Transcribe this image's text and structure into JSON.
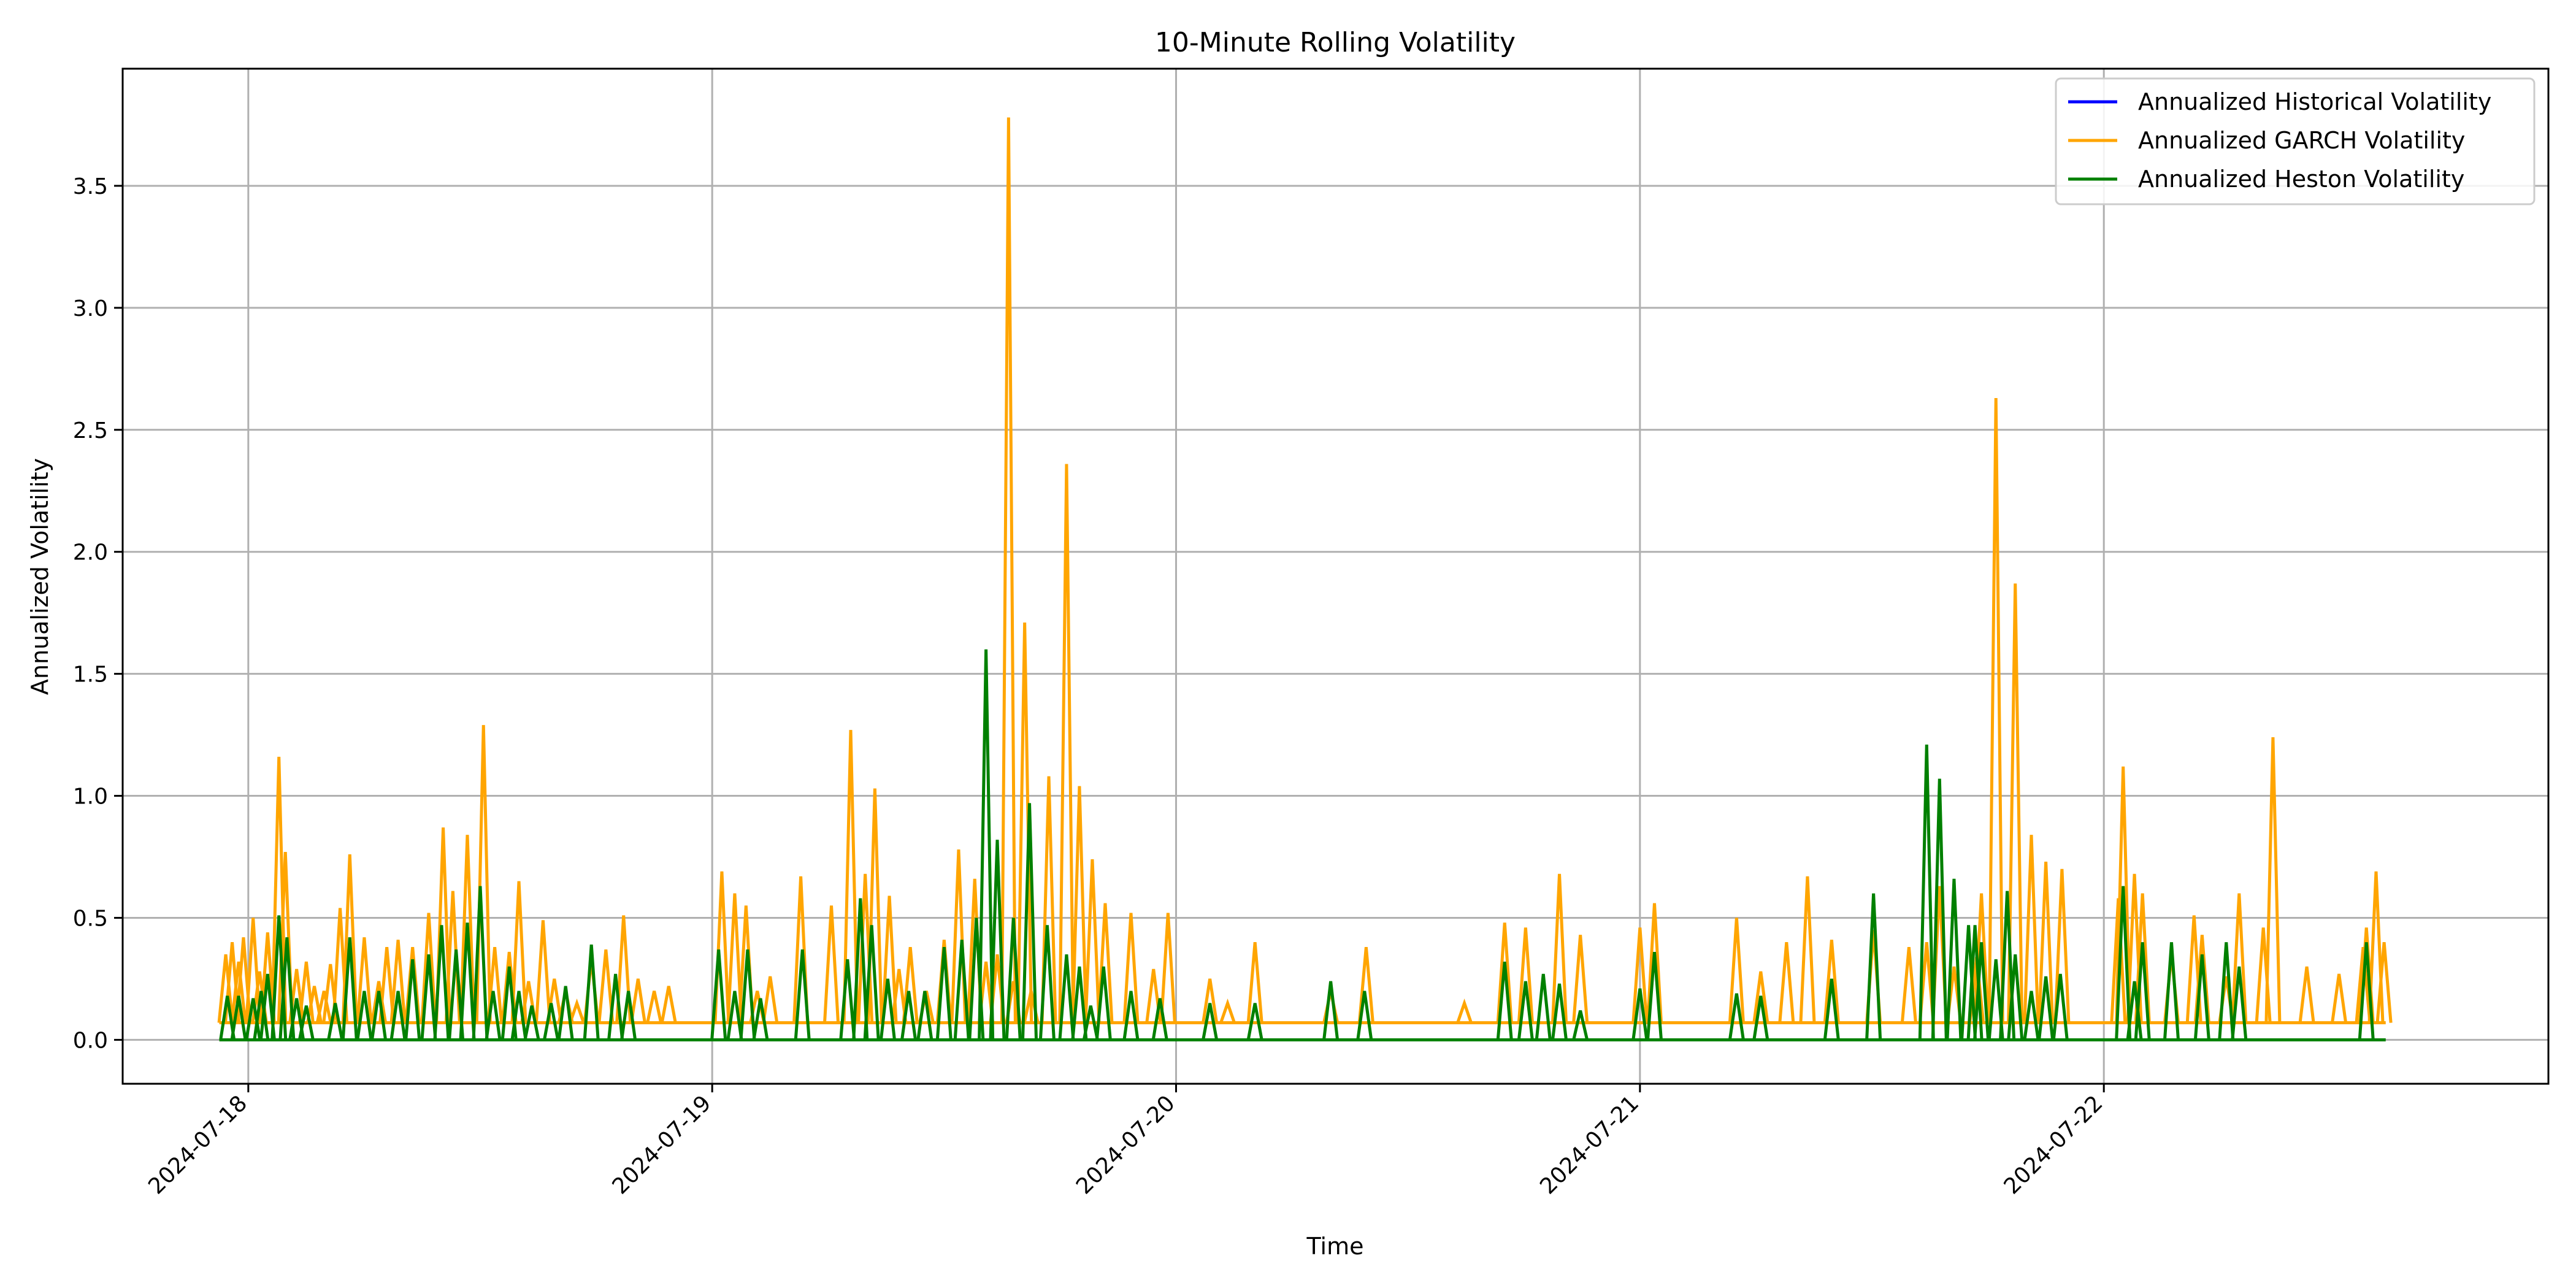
{
  "chart_data": {
    "type": "line",
    "title": "10-Minute Rolling Volatility",
    "xlabel": "Time",
    "ylabel": "Annualized Volatility",
    "x_axis_type": "date",
    "xlim": [
      "2017-07-17T17:30",
      "2024-07-22T23:00"
    ],
    "ylim": [
      -0.18,
      3.98
    ],
    "x_ticks": [
      "2024-07-18",
      "2024-07-19",
      "2024-07-20",
      "2024-07-21",
      "2024-07-22"
    ],
    "y_ticks": [
      0.0,
      0.5,
      1.0,
      1.5,
      2.0,
      2.5,
      3.0,
      3.5
    ],
    "y_tick_labels": [
      "0.0",
      "0.5",
      "1.0",
      "1.5",
      "2.0",
      "2.5",
      "3.0",
      "3.5"
    ],
    "grid": true,
    "legend_position": "top-right",
    "series": [
      {
        "name": "Annualized Historical Volatility",
        "color": "#0000ff",
        "x": [],
        "y": []
      },
      {
        "name": "Annualized GARCH Volatility",
        "color": "#ffa500",
        "baseline": 0.07,
        "x": [
          "2024-07-17T22:50",
          "2024-07-17T23:10",
          "2024-07-17T23:30",
          "2024-07-17T23:45",
          "2024-07-18T00:15",
          "2024-07-18T00:35",
          "2024-07-18T01:00",
          "2024-07-18T01:35",
          "2024-07-18T01:55",
          "2024-07-18T02:30",
          "2024-07-18T03:00",
          "2024-07-18T03:25",
          "2024-07-18T03:55",
          "2024-07-18T04:15",
          "2024-07-18T04:45",
          "2024-07-18T05:15",
          "2024-07-18T06:00",
          "2024-07-18T06:45",
          "2024-07-18T07:10",
          "2024-07-18T07:45",
          "2024-07-18T08:30",
          "2024-07-18T09:20",
          "2024-07-18T10:05",
          "2024-07-18T10:35",
          "2024-07-18T11:20",
          "2024-07-18T12:10",
          "2024-07-18T12:45",
          "2024-07-18T13:30",
          "2024-07-18T14:00",
          "2024-07-18T14:30",
          "2024-07-18T15:15",
          "2024-07-18T15:50",
          "2024-07-18T16:25",
          "2024-07-18T17:00",
          "2024-07-18T17:45",
          "2024-07-18T18:30",
          "2024-07-18T19:25",
          "2024-07-18T20:10",
          "2024-07-18T21:00",
          "2024-07-18T21:45",
          "2024-07-19T00:30",
          "2024-07-19T01:10",
          "2024-07-19T01:45",
          "2024-07-19T02:20",
          "2024-07-19T03:00",
          "2024-07-19T04:35",
          "2024-07-19T06:10",
          "2024-07-19T07:10",
          "2024-07-19T07:55",
          "2024-07-19T08:25",
          "2024-07-19T09:10",
          "2024-07-19T09:40",
          "2024-07-19T10:15",
          "2024-07-19T11:05",
          "2024-07-19T12:00",
          "2024-07-19T12:45",
          "2024-07-19T13:35",
          "2024-07-19T14:10",
          "2024-07-19T14:45",
          "2024-07-19T15:20",
          "2024-07-19T15:35",
          "2024-07-19T16:10",
          "2024-07-19T16:30",
          "2024-07-19T17:25",
          "2024-07-19T18:20",
          "2024-07-19T19:00",
          "2024-07-19T19:40",
          "2024-07-19T20:20",
          "2024-07-19T21:40",
          "2024-07-19T22:50",
          "2024-07-19T23:35",
          "2024-07-20T01:45",
          "2024-07-20T02:40",
          "2024-07-20T04:05",
          "2024-07-20T08:00",
          "2024-07-20T09:50",
          "2024-07-20T14:55",
          "2024-07-20T17:00",
          "2024-07-20T18:05",
          "2024-07-20T19:50",
          "2024-07-20T20:55",
          "2024-07-21T00:00",
          "2024-07-21T00:45",
          "2024-07-21T05:00",
          "2024-07-21T06:15",
          "2024-07-21T07:35",
          "2024-07-21T08:40",
          "2024-07-21T09:55",
          "2024-07-21T12:05",
          "2024-07-21T13:55",
          "2024-07-21T14:50",
          "2024-07-21T15:30",
          "2024-07-21T16:15",
          "2024-07-21T17:25",
          "2024-07-21T17:40",
          "2024-07-21T18:25",
          "2024-07-21T19:25",
          "2024-07-21T20:15",
          "2024-07-21T21:00",
          "2024-07-21T21:50",
          "2024-07-22T00:45",
          "2024-07-22T01:00",
          "2024-07-22T01:35",
          "2024-07-22T02:00",
          "2024-07-22T03:30",
          "2024-07-22T04:40",
          "2024-07-22T05:05",
          "2024-07-22T06:20",
          "2024-07-22T07:00",
          "2024-07-22T08:15",
          "2024-07-22T08:45",
          "2024-07-22T10:30",
          "2024-07-22T12:10",
          "2024-07-22T13:25",
          "2024-07-22T13:35",
          "2024-07-22T14:05",
          "2024-07-22T14:30"
        ],
        "y": [
          0.35,
          0.4,
          0.32,
          0.42,
          0.5,
          0.28,
          0.44,
          1.16,
          0.77,
          0.29,
          0.32,
          0.22,
          0.2,
          0.31,
          0.54,
          0.76,
          0.42,
          0.24,
          0.38,
          0.41,
          0.38,
          0.52,
          0.87,
          0.61,
          0.84,
          1.29,
          0.38,
          0.36,
          0.65,
          0.24,
          0.49,
          0.25,
          0.2,
          0.15,
          0.33,
          0.37,
          0.51,
          0.25,
          0.2,
          0.22,
          0.69,
          0.6,
          0.55,
          0.2,
          0.26,
          0.67,
          0.55,
          1.27,
          0.68,
          1.03,
          0.59,
          0.29,
          0.38,
          0.2,
          0.41,
          0.78,
          0.66,
          0.32,
          0.35,
          3.78,
          0.24,
          1.71,
          0.2,
          1.08,
          2.36,
          1.04,
          0.74,
          0.56,
          0.52,
          0.29,
          0.52,
          0.25,
          0.15,
          0.4,
          0.2,
          0.38,
          0.15,
          0.48,
          0.46,
          0.68,
          0.43,
          0.46,
          0.56,
          0.5,
          0.28,
          0.4,
          0.67,
          0.41,
          0.45,
          0.38,
          0.4,
          0.63,
          0.3,
          0.34,
          0.6,
          2.63,
          1.87,
          0.84,
          0.73,
          0.7,
          0.58,
          1.12,
          0.68,
          0.6,
          0.35,
          0.51,
          0.43,
          0.26,
          0.6,
          0.46,
          1.24,
          0.3,
          0.27,
          0.38,
          0.46,
          0.69,
          0.4
        ]
      },
      {
        "name": "Annualized Heston Volatility",
        "color": "#008000",
        "baseline": 0.0,
        "x": [
          "2024-07-17T22:55",
          "2024-07-17T23:30",
          "2024-07-18T00:15",
          "2024-07-18T00:40",
          "2024-07-18T01:00",
          "2024-07-18T01:35",
          "2024-07-18T02:00",
          "2024-07-18T02:30",
          "2024-07-18T03:00",
          "2024-07-18T04:30",
          "2024-07-18T05:15",
          "2024-07-18T06:00",
          "2024-07-18T06:45",
          "2024-07-18T07:45",
          "2024-07-18T08:30",
          "2024-07-18T09:20",
          "2024-07-18T10:00",
          "2024-07-18T10:45",
          "2024-07-18T11:20",
          "2024-07-18T12:00",
          "2024-07-18T12:40",
          "2024-07-18T13:30",
          "2024-07-18T14:00",
          "2024-07-18T14:40",
          "2024-07-18T15:40",
          "2024-07-18T16:25",
          "2024-07-18T17:45",
          "2024-07-18T19:00",
          "2024-07-18T19:40",
          "2024-07-19T00:20",
          "2024-07-19T01:10",
          "2024-07-19T01:50",
          "2024-07-19T02:30",
          "2024-07-19T04:40",
          "2024-07-19T07:00",
          "2024-07-19T07:40",
          "2024-07-19T08:15",
          "2024-07-19T09:05",
          "2024-07-19T10:10",
          "2024-07-19T11:00",
          "2024-07-19T12:00",
          "2024-07-19T12:55",
          "2024-07-19T13:40",
          "2024-07-19T14:10",
          "2024-07-19T14:45",
          "2024-07-19T15:35",
          "2024-07-19T16:25",
          "2024-07-19T17:20",
          "2024-07-19T18:20",
          "2024-07-19T19:00",
          "2024-07-19T19:35",
          "2024-07-19T20:15",
          "2024-07-19T21:40",
          "2024-07-19T23:10",
          "2024-07-20T01:45",
          "2024-07-20T04:05",
          "2024-07-20T08:00",
          "2024-07-20T09:45",
          "2024-07-20T17:00",
          "2024-07-20T18:05",
          "2024-07-20T19:00",
          "2024-07-20T19:50",
          "2024-07-20T20:55",
          "2024-07-21T00:00",
          "2024-07-21T00:45",
          "2024-07-21T05:00",
          "2024-07-21T06:15",
          "2024-07-21T09:55",
          "2024-07-21T12:05",
          "2024-07-21T14:50",
          "2024-07-21T15:30",
          "2024-07-21T16:15",
          "2024-07-21T17:00",
          "2024-07-21T17:20",
          "2024-07-21T17:40",
          "2024-07-21T18:25",
          "2024-07-21T19:00",
          "2024-07-21T19:25",
          "2024-07-21T20:15",
          "2024-07-21T21:00",
          "2024-07-21T21:45",
          "2024-07-22T01:00",
          "2024-07-22T01:35",
          "2024-07-22T02:00",
          "2024-07-22T03:30",
          "2024-07-22T05:05",
          "2024-07-22T06:20",
          "2024-07-22T07:00",
          "2024-07-22T13:35"
        ],
        "y": [
          0.18,
          0.18,
          0.17,
          0.2,
          0.27,
          0.51,
          0.42,
          0.17,
          0.14,
          0.15,
          0.42,
          0.2,
          0.2,
          0.2,
          0.33,
          0.35,
          0.47,
          0.37,
          0.48,
          0.63,
          0.2,
          0.3,
          0.2,
          0.14,
          0.15,
          0.22,
          0.39,
          0.27,
          0.2,
          0.37,
          0.2,
          0.37,
          0.17,
          0.37,
          0.33,
          0.58,
          0.47,
          0.25,
          0.2,
          0.2,
          0.38,
          0.41,
          0.5,
          1.6,
          0.82,
          0.5,
          0.97,
          0.47,
          0.35,
          0.3,
          0.14,
          0.3,
          0.2,
          0.17,
          0.15,
          0.15,
          0.24,
          0.2,
          0.32,
          0.24,
          0.27,
          0.23,
          0.12,
          0.21,
          0.36,
          0.19,
          0.18,
          0.25,
          0.6,
          1.21,
          1.07,
          0.66,
          0.47,
          0.47,
          0.4,
          0.33,
          0.61,
          0.35,
          0.2,
          0.26,
          0.27,
          0.63,
          0.24,
          0.4,
          0.4,
          0.35,
          0.4,
          0.3,
          0.4
        ]
      }
    ]
  }
}
